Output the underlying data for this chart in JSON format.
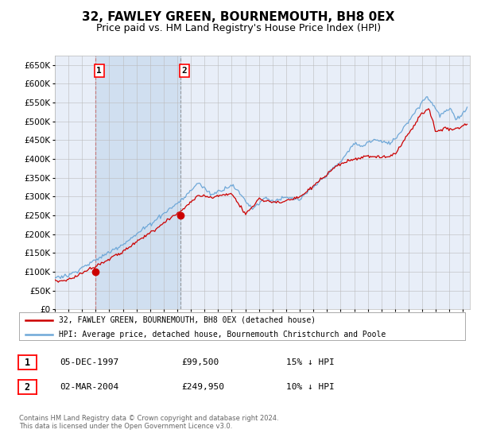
{
  "title": "32, FAWLEY GREEN, BOURNEMOUTH, BH8 0EX",
  "subtitle": "Price paid vs. HM Land Registry's House Price Index (HPI)",
  "legend_line1": "32, FAWLEY GREEN, BOURNEMOUTH, BH8 0EX (detached house)",
  "legend_line2": "HPI: Average price, detached house, Bournemouth Christchurch and Poole",
  "sale1_date": "05-DEC-1997",
  "sale1_price": 99500,
  "sale1_label": "15% ↓ HPI",
  "sale2_date": "02-MAR-2004",
  "sale2_price": 249950,
  "sale2_label": "10% ↓ HPI",
  "footer": "Contains HM Land Registry data © Crown copyright and database right 2024.\nThis data is licensed under the Open Government Licence v3.0.",
  "hpi_color": "#6fa8d8",
  "sale_color": "#cc0000",
  "background_color": "#ffffff",
  "plot_bg_color": "#e8eef8",
  "shade_color": "#d0dff0",
  "grid_color": "#bbbbbb",
  "ylim": [
    0,
    675000
  ],
  "yticks": [
    0,
    50000,
    100000,
    150000,
    200000,
    250000,
    300000,
    350000,
    400000,
    450000,
    500000,
    550000,
    600000,
    650000
  ],
  "title_fontsize": 11,
  "subtitle_fontsize": 9,
  "axis_fontsize": 8
}
